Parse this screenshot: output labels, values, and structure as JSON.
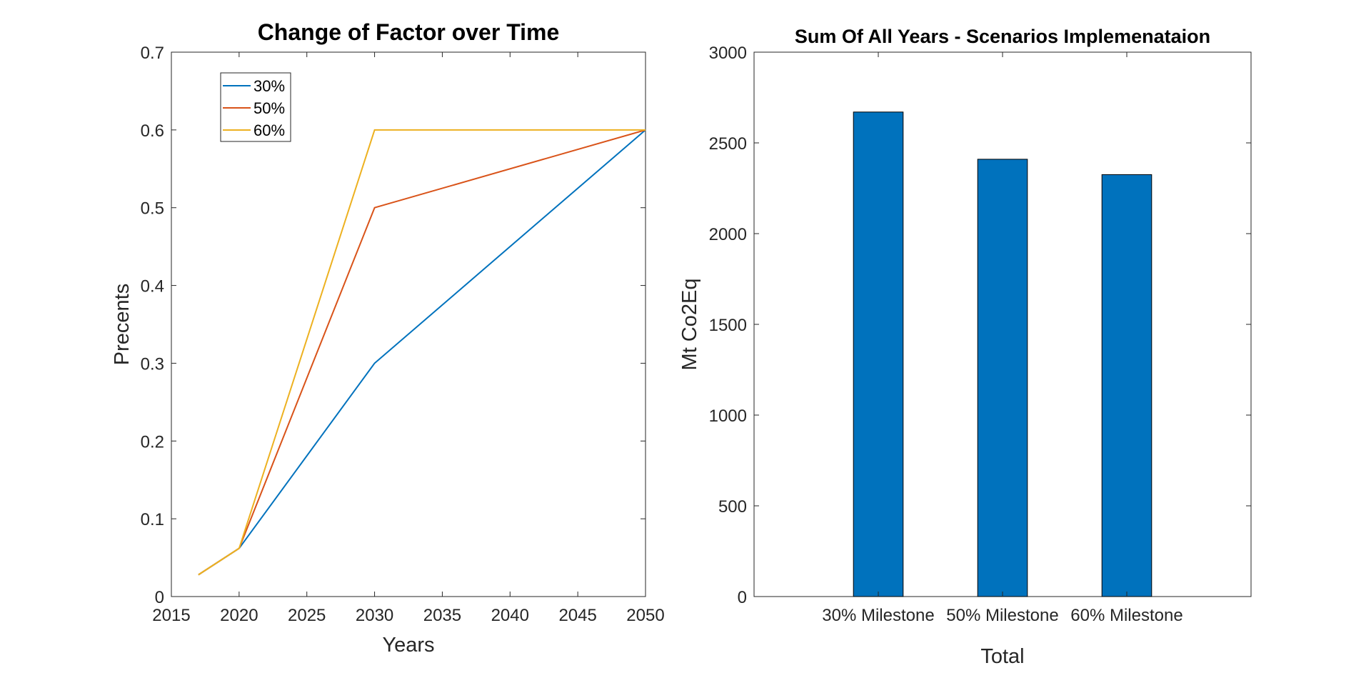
{
  "chart_data": [
    {
      "type": "line",
      "title": "Change of Factor over Time",
      "xlabel": "Years",
      "ylabel": "Precents",
      "xlim": [
        2015,
        2050
      ],
      "ylim": [
        0,
        0.7
      ],
      "xticks": [
        2015,
        2020,
        2025,
        2030,
        2035,
        2040,
        2045,
        2050
      ],
      "yticks": [
        0,
        0.1,
        0.2,
        0.3,
        0.4,
        0.5,
        0.6,
        0.7
      ],
      "ytick_labels": [
        "0",
        "0.1",
        "0.2",
        "0.3",
        "0.4",
        "0.5",
        "0.6",
        "0.7"
      ],
      "grid": false,
      "legend": "top-left",
      "series": [
        {
          "name": "30%",
          "color": "#0072BD",
          "x": [
            2017,
            2020,
            2030,
            2050
          ],
          "y": [
            0.028,
            0.062,
            0.3,
            0.6
          ]
        },
        {
          "name": "50%",
          "color": "#D95319",
          "x": [
            2017,
            2020,
            2030,
            2050
          ],
          "y": [
            0.028,
            0.062,
            0.5,
            0.6
          ]
        },
        {
          "name": "60%",
          "color": "#EDB120",
          "x": [
            2017,
            2020,
            2030,
            2050
          ],
          "y": [
            0.028,
            0.062,
            0.6,
            0.6
          ]
        }
      ]
    },
    {
      "type": "bar",
      "title": "Sum Of All Years - Scenarios Implemenataion",
      "xlabel": "Total",
      "ylabel": "Mt Co2Eq",
      "ylim": [
        0,
        3000
      ],
      "yticks": [
        0,
        500,
        1000,
        1500,
        2000,
        2500,
        3000
      ],
      "ytick_labels": [
        "0",
        "500",
        "1000",
        "1500",
        "2000",
        "2500",
        "3000"
      ],
      "grid": false,
      "color": "#0072BD",
      "categories": [
        "30% Milestone",
        "50% Milestone",
        "60% Milestone"
      ],
      "values": [
        2670,
        2410,
        2325
      ]
    }
  ]
}
